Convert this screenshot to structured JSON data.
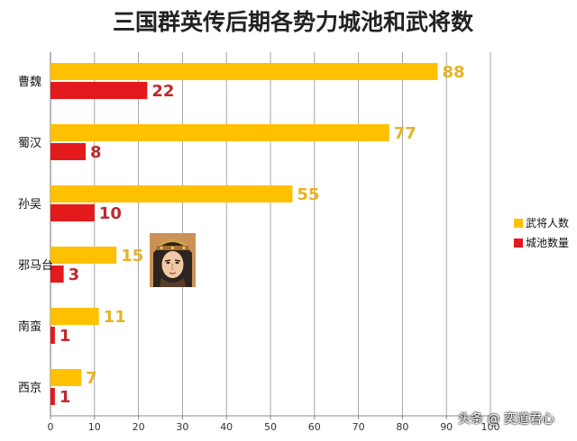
{
  "chart_data": {
    "type": "bar",
    "orientation": "horizontal",
    "title": "三国群英传后期各势力城池和武将数",
    "categories": [
      "曹魏",
      "蜀汉",
      "孙吴",
      "邪马台",
      "南蛮",
      "西京"
    ],
    "series": [
      {
        "name": "武将人数",
        "values": [
          88,
          77,
          55,
          15,
          11,
          7
        ],
        "color": "#FFC000",
        "label_color": "#E6B422"
      },
      {
        "name": "城池数量",
        "values": [
          22,
          8,
          10,
          3,
          1,
          1
        ],
        "color": "#E31A1C",
        "label_color": "#C0282D"
      }
    ],
    "xlim": [
      0,
      100
    ],
    "xticks": [
      0,
      10,
      20,
      30,
      40,
      50,
      60,
      70,
      80,
      90,
      100
    ],
    "grid": true,
    "legend_position": "right"
  },
  "watermark": "头条 @ 奕道君心",
  "avatar_icon": "warrior-portrait-icon"
}
